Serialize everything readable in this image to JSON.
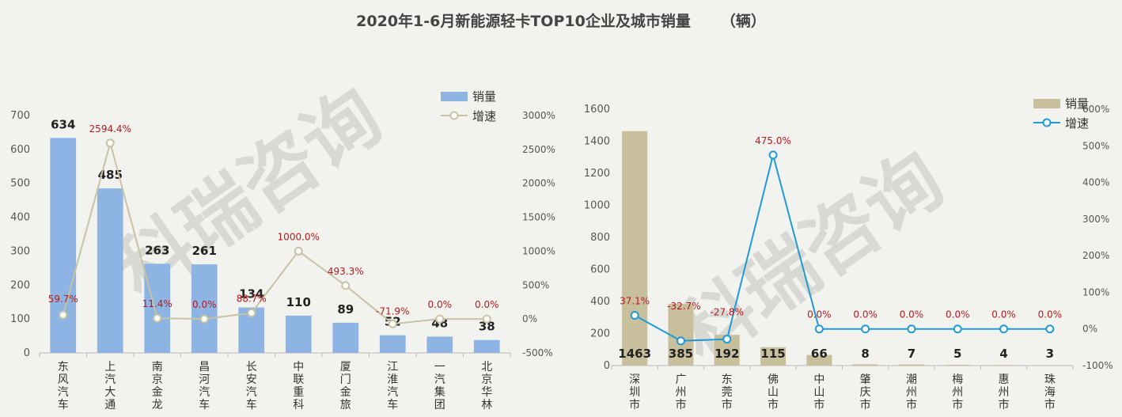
{
  "page": {
    "title": "2020年1-6月新能源轻卡TOP10企业及城市销量",
    "unit": "（辆）",
    "watermark": "科瑞咨询"
  },
  "chart_data": [
    {
      "type": "bar",
      "categories": [
        "东风汽车",
        "上汽大通",
        "南京金龙",
        "昌河汽车",
        "长安汽车",
        "中联重科",
        "厦门金旅",
        "江淮汽车",
        "一汽集团",
        "北京华林"
      ],
      "series": [
        {
          "name": "销量",
          "type": "bar",
          "axis": "left",
          "values": [
            634,
            485,
            263,
            261,
            134,
            110,
            89,
            52,
            48,
            38
          ],
          "color": "#8eb4e3"
        },
        {
          "name": "增速",
          "type": "line",
          "axis": "right",
          "values": [
            59.7,
            2594.4,
            11.4,
            0.0,
            88.7,
            1000.0,
            493.3,
            -71.9,
            0.0,
            0.0
          ],
          "labels": [
            "59.7%",
            "2594.4%",
            "11.4%",
            "0.0%",
            "88.7%",
            "1000.0%",
            "493.3%",
            "-71.9%",
            "0.0%",
            "0.0%"
          ],
          "color": "#c8c3a2"
        }
      ],
      "y_left": {
        "range": [
          0,
          700
        ],
        "ticks": [
          "0",
          "100",
          "200",
          "300",
          "400",
          "500",
          "600",
          "700"
        ]
      },
      "y_right": {
        "range": [
          -500,
          3000
        ],
        "ticks": [
          "-500%",
          "0%",
          "500%",
          "1000%",
          "1500%",
          "2000%",
          "2500%",
          "3000%"
        ]
      },
      "legend": {
        "position": "top-right",
        "items": [
          "销量",
          "增速"
        ]
      }
    },
    {
      "type": "bar",
      "categories": [
        "深圳市",
        "广州市",
        "东莞市",
        "佛山市",
        "中山市",
        "肇庆市",
        "潮州市",
        "梅州市",
        "惠州市",
        "珠海市"
      ],
      "series": [
        {
          "name": "销量",
          "type": "bar",
          "axis": "left",
          "values": [
            1463,
            385,
            192,
            115,
            66,
            8,
            7,
            5,
            4,
            3
          ],
          "color": "#c8bf9c"
        },
        {
          "name": "增速",
          "type": "line",
          "axis": "right",
          "values": [
            37.1,
            -32.7,
            -27.8,
            475.0,
            0.0,
            0.0,
            0.0,
            0.0,
            0.0,
            0.0
          ],
          "labels": [
            "37.1%",
            "-32.7%",
            "-27.8%",
            "475.0%",
            "0.0%",
            "0.0%",
            "0.0%",
            "0.0%",
            "0.0%",
            "0.0%"
          ],
          "color": "#1f9ad6"
        }
      ],
      "y_left": {
        "range": [
          0,
          1600
        ],
        "ticks": [
          "0",
          "200",
          "400",
          "600",
          "800",
          "1000",
          "1200",
          "1400",
          "1600"
        ]
      },
      "y_right": {
        "range": [
          -100,
          600
        ],
        "ticks": [
          "-100%",
          "0%",
          "100%",
          "200%",
          "300%",
          "400%",
          "500%",
          "600%"
        ]
      },
      "legend": {
        "position": "top-right",
        "items": [
          "销量",
          "增速"
        ]
      }
    }
  ]
}
